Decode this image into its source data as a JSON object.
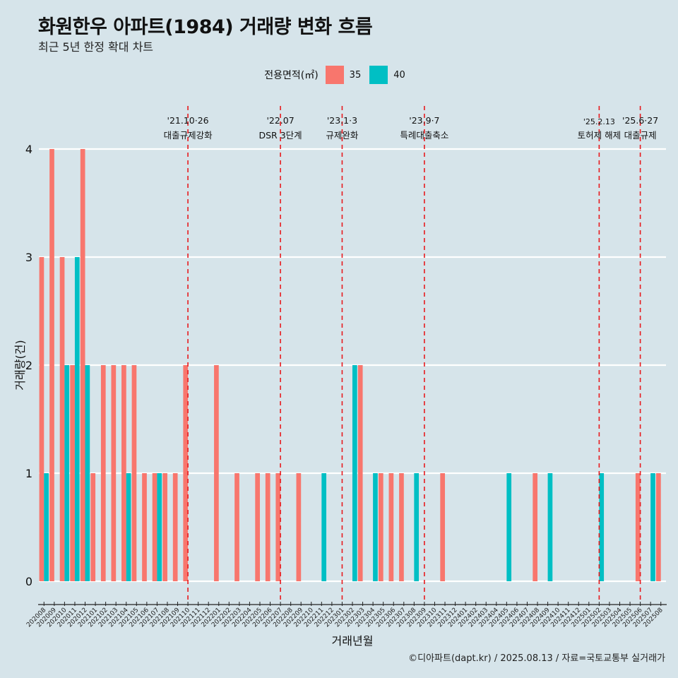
{
  "title": "화원한우 아파트(1984) 거래량 변화 흐름",
  "subtitle": "최근 5년 한정 확대 차트",
  "caption": "©디아파트(dapt.kr) / 2025.08.13 / 자료=국토교통부 실거래가",
  "colors": {
    "s35": "#f8766d",
    "s40": "#00bfc4",
    "event": "#e8191d",
    "background": "#d6e4ea"
  },
  "chart_data": {
    "type": "bar",
    "xlabel": "거래년월",
    "ylabel": "거래량(건)",
    "ylim": [
      0,
      4
    ],
    "yticks": [
      0,
      1,
      2,
      3,
      4
    ],
    "legend": {
      "title": "전용면적(㎡)",
      "position": "top"
    },
    "grid": true,
    "categories": [
      "202008",
      "202009",
      "202010",
      "202011",
      "202012",
      "202101",
      "202102",
      "202103",
      "202104",
      "202105",
      "202106",
      "202107",
      "202108",
      "202109",
      "202110",
      "202111",
      "202112",
      "202201",
      "202202",
      "202203",
      "202204",
      "202205",
      "202206",
      "202207",
      "202208",
      "202209",
      "202210",
      "202211",
      "202212",
      "202301",
      "202302",
      "202303",
      "202304",
      "202305",
      "202306",
      "202307",
      "202308",
      "202309",
      "202310",
      "202311",
      "202312",
      "202401",
      "202402",
      "202403",
      "202404",
      "202405",
      "202406",
      "202407",
      "202408",
      "202409",
      "202410",
      "202411",
      "202412",
      "202501",
      "202502",
      "202503",
      "202504",
      "202505",
      "202506",
      "202507",
      "202508"
    ],
    "series": [
      {
        "name": "35",
        "values": [
          3,
          4,
          3,
          2,
          4,
          1,
          2,
          2,
          2,
          2,
          1,
          1,
          1,
          1,
          2,
          0,
          0,
          2,
          0,
          1,
          0,
          1,
          1,
          1,
          0,
          1,
          0,
          0,
          0,
          0,
          0,
          2,
          0,
          1,
          1,
          1,
          0,
          0,
          0,
          1,
          0,
          0,
          0,
          0,
          0,
          0,
          0,
          0,
          1,
          0,
          0,
          0,
          0,
          0,
          0,
          0,
          0,
          0,
          1,
          0,
          1
        ]
      },
      {
        "name": "40",
        "values": [
          1,
          0,
          2,
          3,
          2,
          0,
          0,
          0,
          1,
          0,
          0,
          1,
          0,
          0,
          0,
          0,
          0,
          0,
          0,
          0,
          0,
          0,
          0,
          0,
          0,
          0,
          0,
          1,
          0,
          0,
          2,
          0,
          1,
          0,
          0,
          0,
          1,
          0,
          0,
          0,
          0,
          0,
          0,
          0,
          0,
          1,
          0,
          0,
          0,
          1,
          0,
          0,
          0,
          0,
          1,
          0,
          0,
          0,
          0,
          1,
          0
        ]
      }
    ],
    "annotations": [
      {
        "x": "202110",
        "line1": "'21.10·26",
        "line2": "대출규제강화"
      },
      {
        "x": "202207",
        "line1": "'22.07",
        "line2": "DSR 3단계"
      },
      {
        "x": "202301",
        "line1": "'23.1·3",
        "line2": "규제완화"
      },
      {
        "x": "202309",
        "line1": "'23.9·7",
        "line2": "특례대출축소"
      },
      {
        "x": "202502",
        "line1": "'25.2.13",
        "line2": "토허제 해제"
      },
      {
        "x": "202506",
        "line1": "'25.6·27",
        "line2": "대출규제"
      }
    ]
  }
}
